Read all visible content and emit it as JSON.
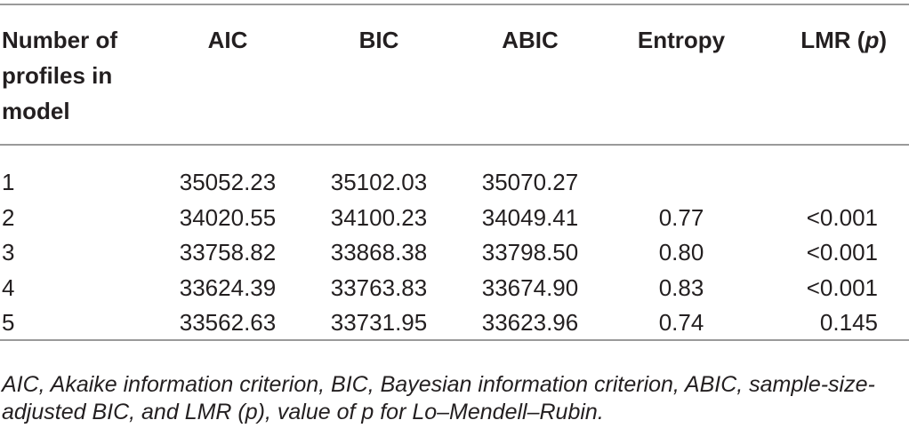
{
  "table": {
    "header": [
      [
        {
          "text": "Number of profiles in model"
        }
      ],
      [
        {
          "text": "AIC"
        }
      ],
      [
        {
          "text": "BIC"
        }
      ],
      [
        {
          "text": "ABIC"
        }
      ],
      [
        {
          "text": "Entropy"
        }
      ],
      [
        {
          "text": "LMR ("
        },
        {
          "text": "p",
          "italic": true
        },
        {
          "text": ")"
        }
      ]
    ],
    "rows": [
      [
        "1",
        "35052.23",
        "35102.03",
        "35070.27",
        null,
        null
      ],
      [
        "2",
        "34020.55",
        "34100.23",
        "34049.41",
        "0.77",
        "<0.001"
      ],
      [
        "3",
        "33758.82",
        "33868.38",
        "33798.50",
        "0.80",
        "<0.001"
      ],
      [
        "4",
        "33624.39",
        "33763.83",
        "33674.90",
        "0.83",
        "<0.001"
      ],
      [
        "5",
        "33562.63",
        "33731.95",
        "33623.96",
        "0.74",
        "0.145"
      ]
    ],
    "footnote": "AIC, Akaike information criterion, BIC, Bayesian information criterion, ABIC, sample-size-adjusted BIC, and LMR (p), value of p for Lo–Mendell–Rubin."
  }
}
